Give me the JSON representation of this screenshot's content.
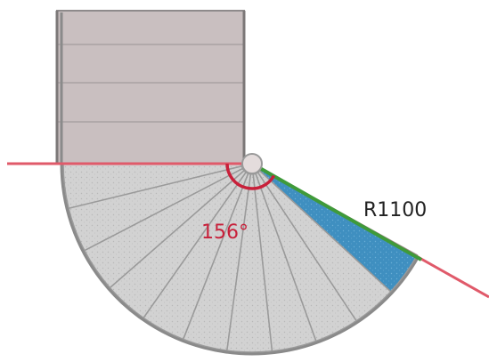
{
  "labels": {
    "angle": "156°",
    "radius": "R1100"
  },
  "colors": {
    "background": "#ffffff",
    "landing_fill": "#c9bfc0",
    "landing_border": "#8e8a8b",
    "tread_fill": "#d2d2d2",
    "tread_stroke": "#9a9a9a",
    "highlight_fill": "#3f8fc0",
    "guide_line": "#e05a6a",
    "angle_mark": "#c8203a",
    "radius_line": "#3f9a3a",
    "radius_text": "#222222"
  }
}
